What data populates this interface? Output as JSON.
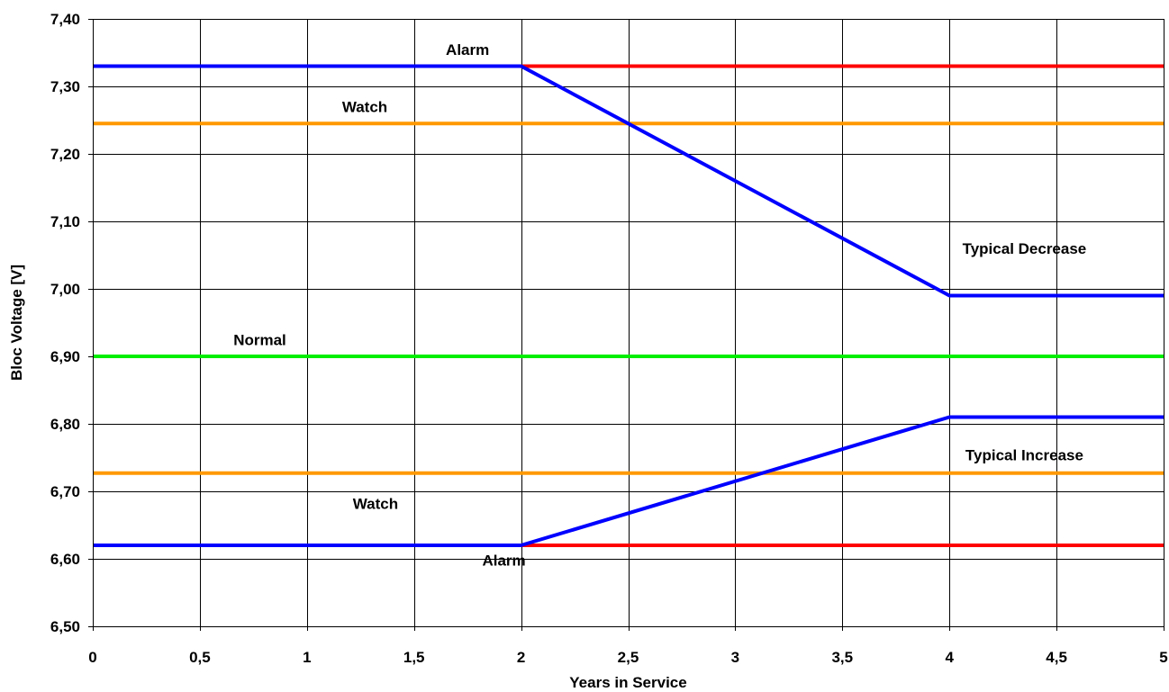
{
  "chart_data": {
    "type": "line",
    "xlabel": "Years in Service",
    "ylabel": "Bloc Voltage [V]",
    "xlim": [
      0,
      5
    ],
    "ylim": [
      6.5,
      7.4
    ],
    "x_ticks": [
      0,
      0.5,
      1,
      1.5,
      2,
      2.5,
      3,
      3.5,
      4,
      4.5,
      5
    ],
    "x_tick_labels": [
      "0",
      "0,5",
      "1",
      "1,5",
      "2",
      "2,5",
      "3",
      "3,5",
      "4",
      "4,5",
      "5"
    ],
    "y_ticks": [
      6.5,
      6.6,
      6.7,
      6.8,
      6.9,
      7.0,
      7.1,
      7.2,
      7.3,
      7.4
    ],
    "y_tick_labels": [
      "6,50",
      "6,60",
      "6,70",
      "6,80",
      "6,90",
      "7,00",
      "7,10",
      "7,20",
      "7,30",
      "7,40"
    ],
    "grid": true,
    "series": [
      {
        "color": "#ff0000",
        "x": [
          2,
          5
        ],
        "y": [
          7.33,
          7.33
        ]
      },
      {
        "color": "#ff9900",
        "x": [
          0,
          5
        ],
        "y": [
          7.245,
          7.245
        ]
      },
      {
        "color": "#00ee00",
        "x": [
          0,
          5
        ],
        "y": [
          6.9,
          6.9
        ]
      },
      {
        "color": "#ff9900",
        "x": [
          0,
          5
        ],
        "y": [
          6.727,
          6.727
        ]
      },
      {
        "color": "#ff0000",
        "x": [
          2,
          5
        ],
        "y": [
          6.62,
          6.62
        ]
      },
      {
        "color": "#0000ff",
        "x": [
          0,
          2,
          4,
          5
        ],
        "y": [
          7.33,
          7.33,
          6.99,
          6.99
        ]
      },
      {
        "color": "#0000ff",
        "x": [
          0,
          2,
          4,
          5
        ],
        "y": [
          6.62,
          6.62,
          6.81,
          6.81
        ]
      }
    ],
    "annotations": [
      {
        "text": "Alarm",
        "x": 1.75,
        "y": 7.355
      },
      {
        "text": "Watch",
        "x": 1.27,
        "y": 7.27
      },
      {
        "text": "Typical Decrease",
        "x": 4.35,
        "y": 7.06
      },
      {
        "text": "Normal",
        "x": 0.78,
        "y": 6.925
      },
      {
        "text": "Typical Increase",
        "x": 4.35,
        "y": 6.754
      },
      {
        "text": "Watch",
        "x": 1.32,
        "y": 6.682
      },
      {
        "text": "Alarm",
        "x": 1.92,
        "y": 6.598
      }
    ]
  }
}
